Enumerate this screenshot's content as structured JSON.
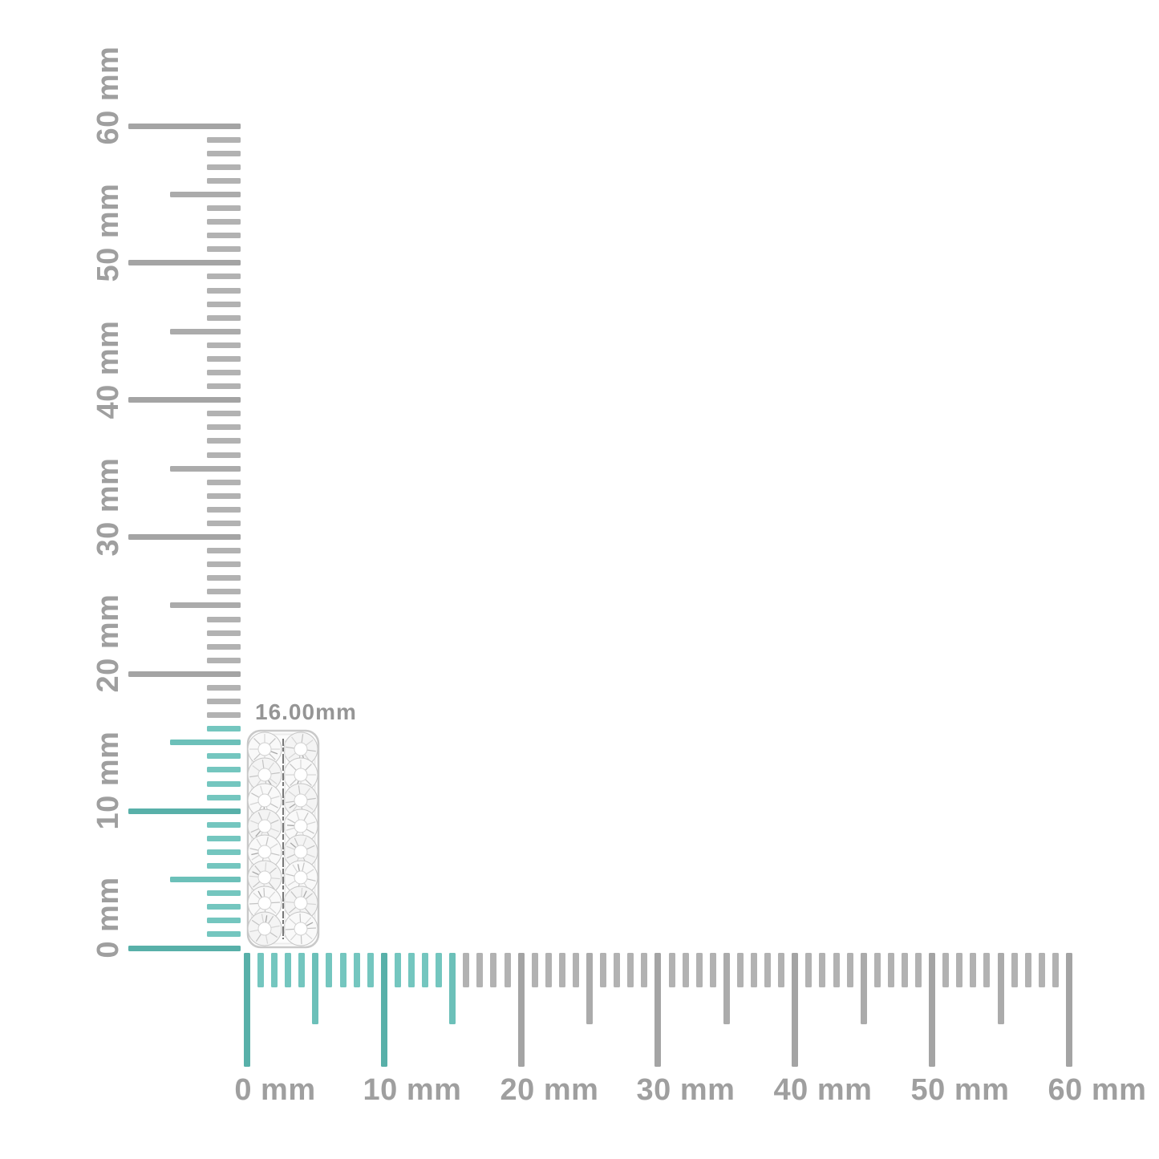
{
  "measurement": {
    "label": "16.00mm"
  },
  "rulers": {
    "unit": "mm",
    "min_mm": 0,
    "max_mm": 60,
    "minor_step_mm": 1,
    "medium_step_mm": 5,
    "major_step_mm": 10,
    "major_labels": [
      "0 mm",
      "10 mm",
      "20 mm",
      "30 mm",
      "40 mm",
      "50 mm",
      "60 mm"
    ],
    "vertical": {
      "orientation": "left",
      "highlight_to_mm": 16
    },
    "horizontal": {
      "orientation": "bottom",
      "highlight_to_mm": 15
    }
  },
  "colors": {
    "background": "#ffffff",
    "tick_gray_minor": "#b2b2b2",
    "tick_gray_medium": "#ababab",
    "tick_gray_major": "#a4a4a4",
    "tick_teal_minor": "#74c6bf",
    "tick_teal_medium": "#6cc0b9",
    "tick_teal_major": "#58b0a9",
    "label_gray": "#9f9f9f",
    "measure_gray": "#959595",
    "metal_silver": "#c9c9c9",
    "stone_facet": "#d5d5d5",
    "groove_dark": "#787878"
  },
  "product": {
    "name": "pave-diamond-earring",
    "icon": "diamond-earring-image"
  }
}
